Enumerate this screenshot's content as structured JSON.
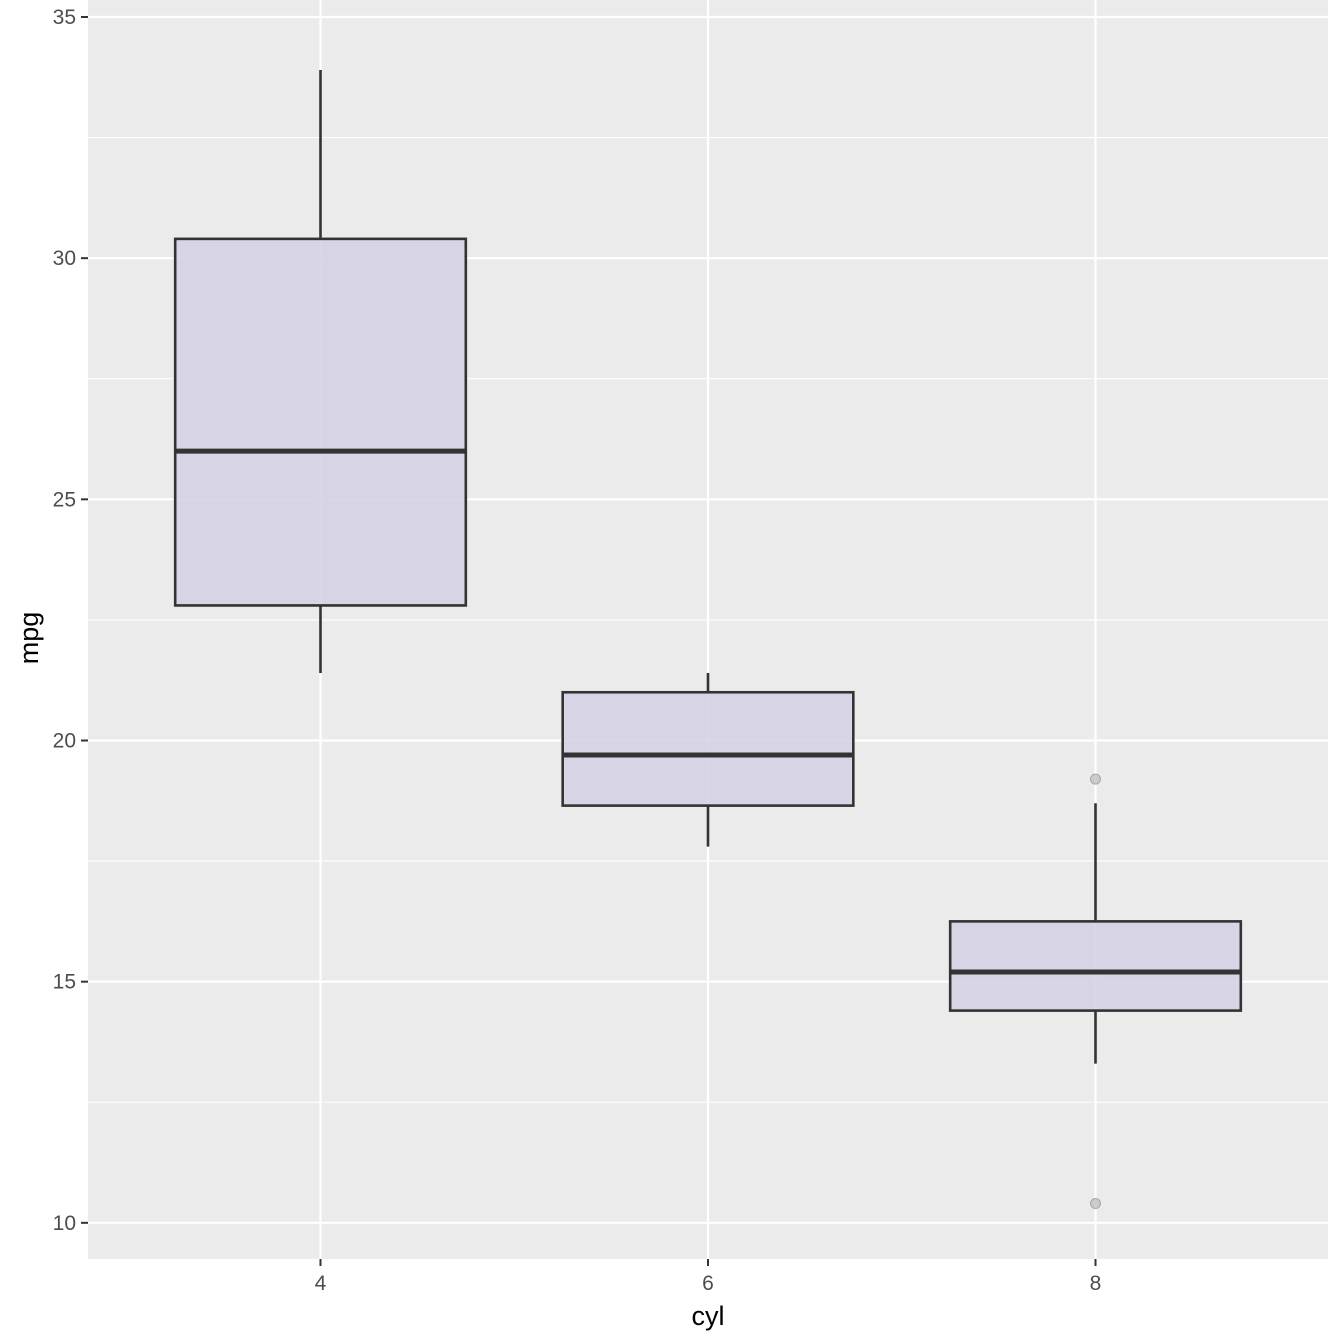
{
  "chart_data": {
    "type": "boxplot",
    "title": "",
    "xlabel": "cyl",
    "ylabel": "mpg",
    "categories": [
      "4",
      "6",
      "8"
    ],
    "ylim": [
      9.25,
      35.0
    ],
    "xlim": [
      2.8,
      9.2
    ],
    "y_ticks": [
      10,
      15,
      20,
      25,
      30,
      35
    ],
    "y_minor_ticks": [
      12.5,
      17.5,
      22.5,
      27.5,
      32.5
    ],
    "x_ticks": [
      4,
      6,
      8
    ],
    "grid": true,
    "legend": "none",
    "boxes": [
      {
        "category": "4",
        "x": 4,
        "min": 21.4,
        "q1": 22.8,
        "median": 26.0,
        "q3": 30.4,
        "max": 33.9,
        "outliers": []
      },
      {
        "category": "6",
        "x": 6,
        "min": 17.8,
        "q1": 18.65,
        "median": 19.7,
        "q3": 21.0,
        "max": 21.4,
        "outliers": []
      },
      {
        "category": "8",
        "x": 8,
        "min": 13.3,
        "q1": 14.4,
        "median": 15.2,
        "q3": 16.25,
        "max": 18.7,
        "outliers": [
          19.2,
          10.4
        ]
      }
    ],
    "colors": {
      "panel": "#ebebeb",
      "grid": "#ffffff",
      "box_fill": "#d5d1e6",
      "box_line": "#333333",
      "outlier": "#bdbdbd"
    }
  }
}
